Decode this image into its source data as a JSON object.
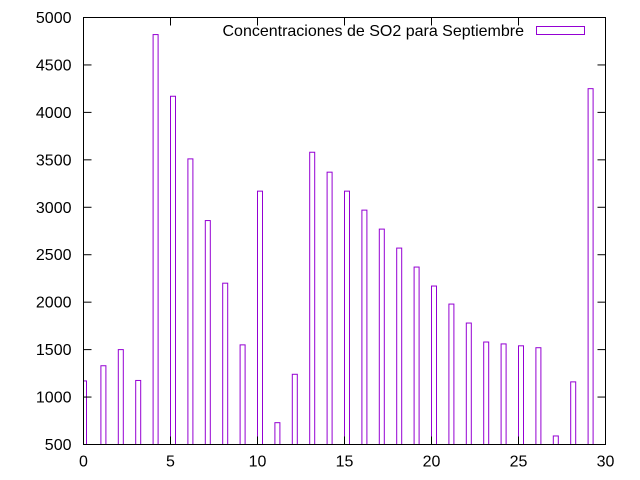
{
  "chart_data": {
    "type": "bar",
    "title": "",
    "xlabel": "",
    "ylabel": "",
    "legend": {
      "entries": [
        "Concentraciones de SO2 para Septiembre"
      ],
      "placement": "top-right"
    },
    "series": [
      {
        "name": "Concentraciones de SO2 para Septiembre",
        "color": "#9400d3",
        "x": [
          0,
          1,
          2,
          3,
          4,
          5,
          6,
          7,
          8,
          9,
          10,
          11,
          12,
          13,
          14,
          15,
          16,
          17,
          18,
          19,
          20,
          21,
          22,
          23,
          24,
          25,
          26,
          27,
          28,
          29
        ],
        "values": [
          1170,
          1330,
          1500,
          1175,
          4820,
          4170,
          3510,
          2860,
          2200,
          1550,
          3170,
          730,
          1240,
          3580,
          3370,
          3170,
          2970,
          2770,
          2570,
          2370,
          2170,
          1980,
          1780,
          1580,
          1560,
          1540,
          1520,
          590,
          1160,
          4250
        ]
      }
    ],
    "xlim": [
      0,
      30
    ],
    "ylim": [
      500,
      5000
    ],
    "x_ticks": [
      "0",
      "5",
      "10",
      "15",
      "20",
      "25",
      "30"
    ],
    "y_ticks": [
      "500",
      "1000",
      "1500",
      "2000",
      "2500",
      "3000",
      "3500",
      "4000",
      "4500",
      "5000"
    ],
    "grid": false,
    "colors": {
      "bar_stroke": "#9400d3",
      "axis": "#000000",
      "background": "#ffffff"
    }
  }
}
